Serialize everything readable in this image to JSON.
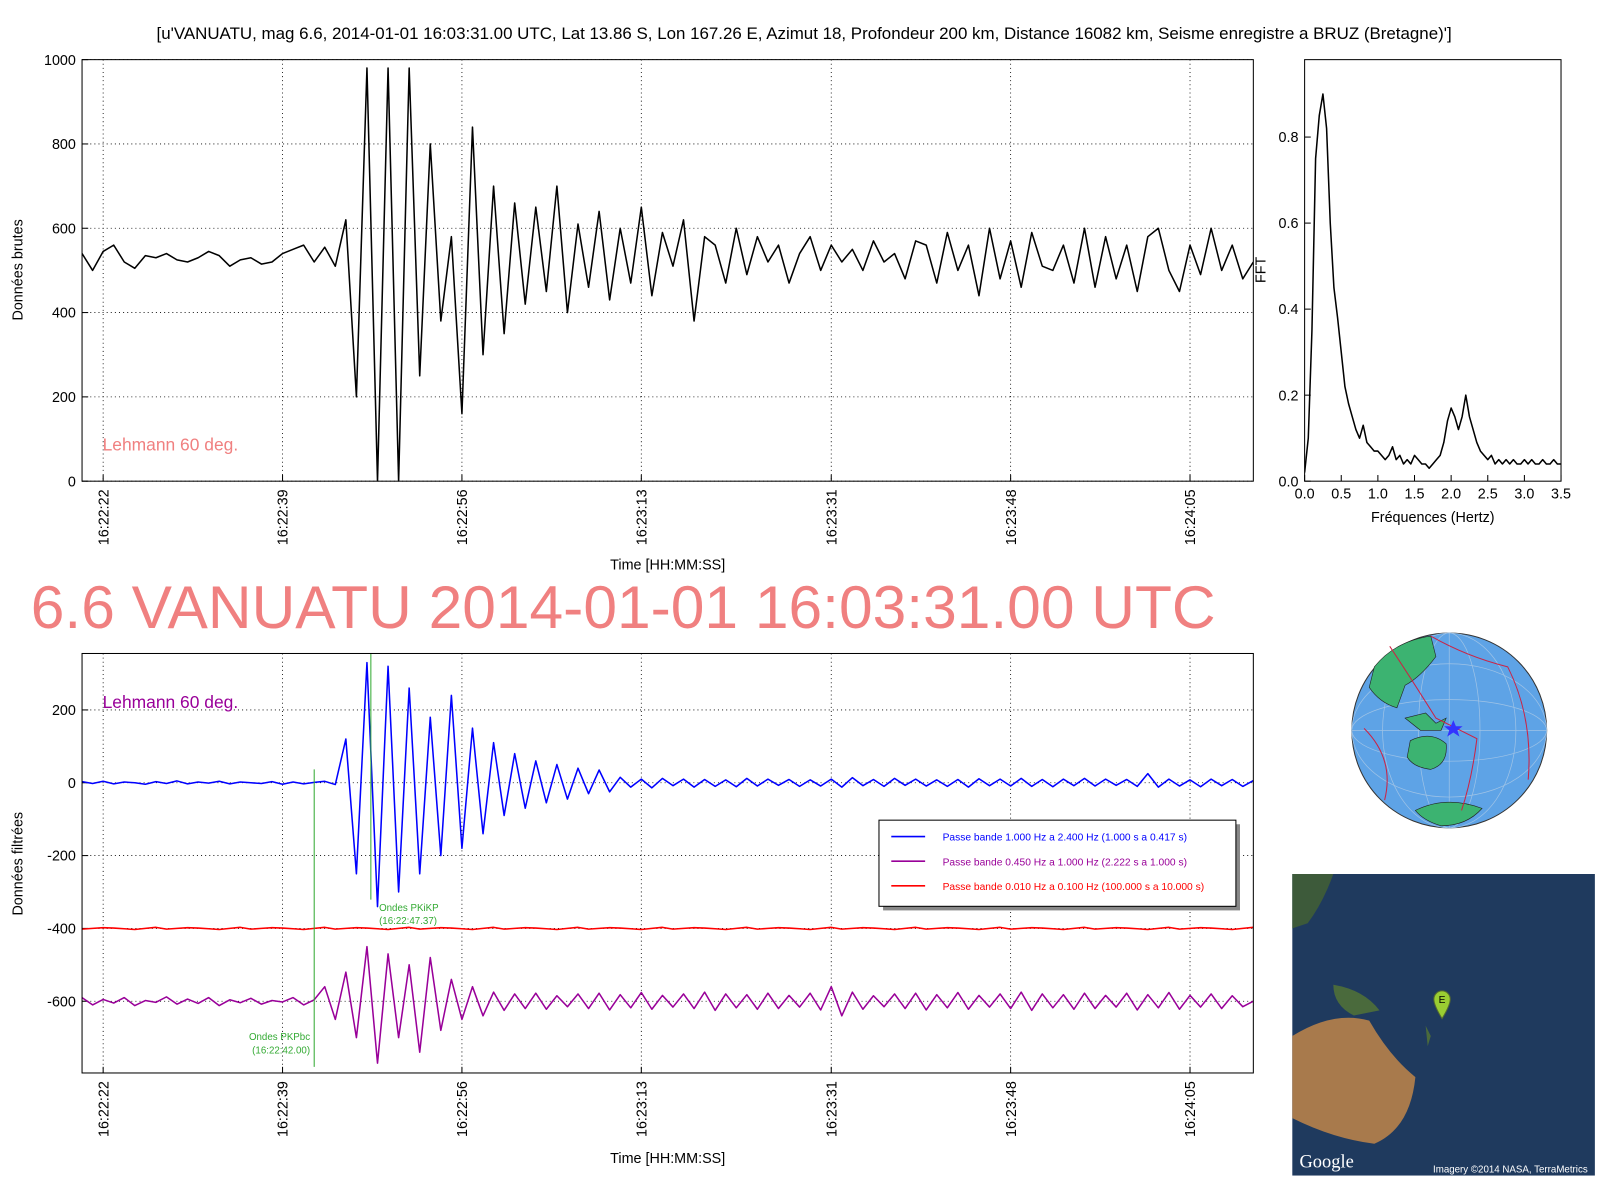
{
  "title": "[u'VANUATU, mag 6.6, 2014-01-01 16:03:31.00 UTC, Lat 13.86 S, Lon 167.26 E, Azimut 18, Profondeur 200 km, Distance 16082 km, Seisme enregistre a BRUZ (Bretagne)']",
  "headline": "6.6 VANUATU 2014-01-01 16:03:31.00 UTC",
  "map": {
    "logo": "Google",
    "attribution": "Imagery ©2014 NASA, TerraMetrics",
    "marker": "E"
  },
  "chart_data": [
    {
      "type": "line",
      "ylabel": "Données brutes",
      "xlabel": "Time [HH:MM:SS]",
      "annotation": "Lehmann 60 deg.",
      "annotation_color": "#f08080",
      "grid": true,
      "xlim": [
        "16:22:20",
        "16:24:11"
      ],
      "xticks": [
        "16:22:22",
        "16:22:39",
        "16:22:56",
        "16:23:13",
        "16:23:31",
        "16:23:48",
        "16:24:05"
      ],
      "ylim": [
        0,
        1000
      ],
      "yticks": [
        0,
        200,
        400,
        600,
        800,
        1000
      ],
      "x": [
        "16:22:20",
        "16:22:21",
        "16:22:22",
        "16:22:23",
        "16:22:24",
        "16:22:25",
        "16:22:26",
        "16:22:27",
        "16:22:28",
        "16:22:29",
        "16:22:30",
        "16:22:31",
        "16:22:32",
        "16:22:33",
        "16:22:34",
        "16:22:35",
        "16:22:36",
        "16:22:37",
        "16:22:38",
        "16:22:39",
        "16:22:40",
        "16:22:41",
        "16:22:42",
        "16:22:43",
        "16:22:44",
        "16:22:45",
        "16:22:46",
        "16:22:47",
        "16:22:48",
        "16:22:49",
        "16:22:50",
        "16:22:51",
        "16:22:52",
        "16:22:53",
        "16:22:54",
        "16:22:55",
        "16:22:56",
        "16:22:57",
        "16:22:58",
        "16:22:59",
        "16:23:00",
        "16:23:01",
        "16:23:02",
        "16:23:03",
        "16:23:04",
        "16:23:05",
        "16:23:06",
        "16:23:07",
        "16:23:08",
        "16:23:09",
        "16:23:10",
        "16:23:11",
        "16:23:12",
        "16:23:13",
        "16:23:14",
        "16:23:15",
        "16:23:16",
        "16:23:17",
        "16:23:18",
        "16:23:19",
        "16:23:20",
        "16:23:21",
        "16:23:22",
        "16:23:23",
        "16:23:24",
        "16:23:25",
        "16:23:26",
        "16:23:27",
        "16:23:28",
        "16:23:29",
        "16:23:30",
        "16:23:31",
        "16:23:32",
        "16:23:33",
        "16:23:34",
        "16:23:35",
        "16:23:36",
        "16:23:37",
        "16:23:38",
        "16:23:39",
        "16:23:40",
        "16:23:41",
        "16:23:42",
        "16:23:43",
        "16:23:44",
        "16:23:45",
        "16:23:46",
        "16:23:47",
        "16:23:48",
        "16:23:49",
        "16:23:50",
        "16:23:51",
        "16:23:52",
        "16:23:53",
        "16:23:54",
        "16:23:55",
        "16:23:56",
        "16:23:57",
        "16:23:58",
        "16:23:59",
        "16:24:00",
        "16:24:01",
        "16:24:02",
        "16:24:03",
        "16:24:04",
        "16:24:05",
        "16:24:06",
        "16:24:07",
        "16:24:08",
        "16:24:09",
        "16:24:10",
        "16:24:11"
      ],
      "series": [
        {
          "color": "#000000",
          "values": [
            540,
            500,
            545,
            560,
            520,
            505,
            535,
            530,
            540,
            525,
            520,
            530,
            545,
            535,
            510,
            525,
            530,
            515,
            520,
            540,
            550,
            560,
            520,
            555,
            510,
            620,
            200,
            980,
            0,
            980,
            0,
            980,
            250,
            800,
            380,
            580,
            160,
            840,
            300,
            700,
            350,
            660,
            420,
            650,
            450,
            700,
            400,
            610,
            460,
            640,
            430,
            600,
            470,
            650,
            440,
            590,
            510,
            620,
            380,
            580,
            560,
            470,
            600,
            490,
            580,
            520,
            560,
            470,
            540,
            580,
            500,
            560,
            520,
            550,
            500,
            570,
            520,
            540,
            480,
            570,
            560,
            470,
            590,
            500,
            560,
            440,
            600,
            480,
            570,
            460,
            590,
            510,
            500,
            560,
            470,
            600,
            460,
            580,
            480,
            560,
            450,
            580,
            600,
            500,
            450,
            560,
            490,
            600,
            500,
            560,
            480,
            520
          ]
        }
      ]
    },
    {
      "type": "line",
      "ylabel": "FFT",
      "xlabel": "Fréquences (Hertz)",
      "xlim": [
        0,
        3.5
      ],
      "xticks": [
        {
          "value": 0,
          "label": "0.0"
        },
        0.5,
        {
          "value": 1,
          "label": "1.0"
        },
        1.5,
        {
          "value": 2,
          "label": "2.0"
        },
        2.5,
        {
          "value": 3,
          "label": "3.0"
        },
        3.5
      ],
      "ylim": [
        0,
        0.98
      ],
      "yticks": [
        {
          "value": 0,
          "label": "0.0"
        },
        0.2,
        0.4,
        0.6,
        0.8
      ],
      "x": [
        0,
        0.05,
        0.1,
        0.15,
        0.2,
        0.25,
        0.3,
        0.35,
        0.4,
        0.45,
        0.5,
        0.55,
        0.6,
        0.65,
        0.7,
        0.75,
        0.8,
        0.85,
        0.9,
        0.95,
        1,
        1.05,
        1.1,
        1.15,
        1.2,
        1.25,
        1.3,
        1.35,
        1.4,
        1.45,
        1.5,
        1.55,
        1.6,
        1.65,
        1.7,
        1.75,
        1.8,
        1.85,
        1.9,
        1.95,
        2,
        2.05,
        2.1,
        2.15,
        2.2,
        2.25,
        2.3,
        2.35,
        2.4,
        2.45,
        2.5,
        2.55,
        2.6,
        2.65,
        2.7,
        2.75,
        2.8,
        2.85,
        2.9,
        2.95,
        3,
        3.05,
        3.1,
        3.15,
        3.2,
        3.25,
        3.3,
        3.35,
        3.4,
        3.45,
        3.5
      ],
      "series": [
        {
          "color": "#000000",
          "values": [
            0.02,
            0.1,
            0.35,
            0.75,
            0.85,
            0.9,
            0.82,
            0.6,
            0.45,
            0.38,
            0.3,
            0.22,
            0.18,
            0.15,
            0.12,
            0.1,
            0.13,
            0.09,
            0.08,
            0.07,
            0.07,
            0.06,
            0.05,
            0.06,
            0.08,
            0.05,
            0.06,
            0.04,
            0.05,
            0.04,
            0.06,
            0.05,
            0.04,
            0.04,
            0.03,
            0.04,
            0.05,
            0.06,
            0.09,
            0.14,
            0.17,
            0.15,
            0.12,
            0.15,
            0.2,
            0.15,
            0.12,
            0.09,
            0.07,
            0.06,
            0.05,
            0.06,
            0.04,
            0.05,
            0.04,
            0.05,
            0.04,
            0.05,
            0.04,
            0.04,
            0.05,
            0.04,
            0.05,
            0.04,
            0.04,
            0.05,
            0.04,
            0.04,
            0.05,
            0.04,
            0.04
          ]
        }
      ]
    },
    {
      "type": "line",
      "ylabel": "Données filtrées",
      "xlabel": "Time [HH:MM:SS]",
      "annotation": "Lehmann 60 deg.",
      "annotation_color": "#990099",
      "grid": true,
      "legend": "center right",
      "xlim": [
        "16:22:20",
        "16:24:11"
      ],
      "xticks": [
        "16:22:22",
        "16:22:39",
        "16:22:56",
        "16:23:13",
        "16:23:31",
        "16:23:48",
        "16:24:05"
      ],
      "ylim": [
        -797,
        355
      ],
      "yticks": [
        -600,
        -400,
        -200,
        0,
        200
      ],
      "markers": [
        {
          "x": "16:22:42.00",
          "label": "Ondes PKPbc",
          "sublabel": "(16:22:42.00)",
          "color": "#33aa33"
        },
        {
          "x": "16:22:47.37",
          "label": "Ondes PKiKP",
          "sublabel": "(16:22:47.37)",
          "color": "#33aa33"
        }
      ],
      "x": [
        "16:22:20",
        "16:22:21",
        "16:22:22",
        "16:22:23",
        "16:22:24",
        "16:22:25",
        "16:22:26",
        "16:22:27",
        "16:22:28",
        "16:22:29",
        "16:22:30",
        "16:22:31",
        "16:22:32",
        "16:22:33",
        "16:22:34",
        "16:22:35",
        "16:22:36",
        "16:22:37",
        "16:22:38",
        "16:22:39",
        "16:22:40",
        "16:22:41",
        "16:22:42",
        "16:22:43",
        "16:22:44",
        "16:22:45",
        "16:22:46",
        "16:22:47",
        "16:22:48",
        "16:22:49",
        "16:22:50",
        "16:22:51",
        "16:22:52",
        "16:22:53",
        "16:22:54",
        "16:22:55",
        "16:22:56",
        "16:22:57",
        "16:22:58",
        "16:22:59",
        "16:23:00",
        "16:23:01",
        "16:23:02",
        "16:23:03",
        "16:23:04",
        "16:23:05",
        "16:23:06",
        "16:23:07",
        "16:23:08",
        "16:23:09",
        "16:23:10",
        "16:23:11",
        "16:23:12",
        "16:23:13",
        "16:23:14",
        "16:23:15",
        "16:23:16",
        "16:23:17",
        "16:23:18",
        "16:23:19",
        "16:23:20",
        "16:23:21",
        "16:23:22",
        "16:23:23",
        "16:23:24",
        "16:23:25",
        "16:23:26",
        "16:23:27",
        "16:23:28",
        "16:23:29",
        "16:23:30",
        "16:23:31",
        "16:23:32",
        "16:23:33",
        "16:23:34",
        "16:23:35",
        "16:23:36",
        "16:23:37",
        "16:23:38",
        "16:23:39",
        "16:23:40",
        "16:23:41",
        "16:23:42",
        "16:23:43",
        "16:23:44",
        "16:23:45",
        "16:23:46",
        "16:23:47",
        "16:23:48",
        "16:23:49",
        "16:23:50",
        "16:23:51",
        "16:23:52",
        "16:23:53",
        "16:23:54",
        "16:23:55",
        "16:23:56",
        "16:23:57",
        "16:23:58",
        "16:23:59",
        "16:24:00",
        "16:24:01",
        "16:24:02",
        "16:24:03",
        "16:24:04",
        "16:24:05",
        "16:24:06",
        "16:24:07",
        "16:24:08",
        "16:24:09",
        "16:24:10",
        "16:24:11"
      ],
      "series": [
        {
          "name": "Passe bande 1.000 Hz a 2.400 Hz (1.000 s a 0.417 s)",
          "color": "#0000ff",
          "values": [
            3,
            -2,
            4,
            -3,
            2,
            0,
            -4,
            3,
            -2,
            5,
            -3,
            2,
            -1,
            4,
            -3,
            2,
            0,
            -2,
            3,
            -4,
            2,
            -3,
            1,
            4,
            -5,
            120,
            -250,
            330,
            -340,
            320,
            -300,
            260,
            -250,
            180,
            -200,
            240,
            -180,
            150,
            -140,
            110,
            -90,
            80,
            -70,
            60,
            -55,
            50,
            -45,
            40,
            -30,
            35,
            -25,
            15,
            -12,
            10,
            -14,
            12,
            -8,
            10,
            -12,
            9,
            -10,
            8,
            -11,
            12,
            -9,
            10,
            -7,
            9,
            -10,
            8,
            -9,
            10,
            -12,
            14,
            -8,
            9,
            -10,
            12,
            -7,
            10,
            -9,
            8,
            -10,
            9,
            -12,
            11,
            -8,
            10,
            -9,
            12,
            -10,
            9,
            -11,
            10,
            -8,
            12,
            -9,
            10,
            -7,
            9,
            -10,
            25,
            -12,
            10,
            -9,
            8,
            -11,
            10,
            -8,
            9,
            -10,
            6
          ]
        },
        {
          "name": "Passe bande 0.450 Hz a 1.000 Hz (2.222 s a 1.000 s)",
          "color": "#990099",
          "values": [
            -590,
            -610,
            -595,
            -605,
            -590,
            -612,
            -598,
            -603,
            -588,
            -608,
            -594,
            -606,
            -590,
            -612,
            -596,
            -604,
            -592,
            -608,
            -598,
            -602,
            -590,
            -610,
            -596,
            -560,
            -650,
            -520,
            -700,
            -450,
            -770,
            -470,
            -700,
            -500,
            -740,
            -480,
            -680,
            -540,
            -650,
            -560,
            -640,
            -575,
            -625,
            -580,
            -620,
            -578,
            -622,
            -585,
            -615,
            -580,
            -620,
            -578,
            -624,
            -582,
            -618,
            -576,
            -622,
            -584,
            -616,
            -580,
            -620,
            -575,
            -625,
            -580,
            -618,
            -582,
            -622,
            -578,
            -620,
            -584,
            -616,
            -578,
            -624,
            -560,
            -640,
            -575,
            -622,
            -585,
            -615,
            -580,
            -620,
            -578,
            -624,
            -582,
            -618,
            -576,
            -622,
            -584,
            -616,
            -580,
            -620,
            -575,
            -625,
            -580,
            -618,
            -582,
            -622,
            -578,
            -620,
            -584,
            -616,
            -578,
            -624,
            -582,
            -618,
            -576,
            -622,
            -584,
            -616,
            -580,
            -620,
            -585,
            -615,
            -600
          ]
        },
        {
          "name": "Passe bande 0.010 Hz a 0.100 Hz (100.000 s a 10.000 s)",
          "color": "#ff0000",
          "values": [
            -402,
            -400,
            -398,
            -399,
            -401,
            -403,
            -400,
            -397,
            -402,
            -400,
            -398,
            -399,
            -401,
            -403,
            -400,
            -397,
            -402,
            -400,
            -398,
            -399,
            -401,
            -403,
            -400,
            -397,
            -402,
            -400,
            -398,
            -399,
            -401,
            -403,
            -400,
            -397,
            -402,
            -400,
            -398,
            -399,
            -401,
            -403,
            -400,
            -397,
            -402,
            -400,
            -398,
            -399,
            -401,
            -403,
            -400,
            -397,
            -402,
            -400,
            -398,
            -399,
            -401,
            -403,
            -400,
            -397,
            -402,
            -400,
            -398,
            -399,
            -401,
            -403,
            -400,
            -397,
            -402,
            -400,
            -398,
            -399,
            -401,
            -403,
            -400,
            -397,
            -402,
            -400,
            -398,
            -399,
            -401,
            -403,
            -400,
            -397,
            -402,
            -400,
            -398,
            -399,
            -401,
            -403,
            -400,
            -397,
            -402,
            -400,
            -398,
            -399,
            -401,
            -403,
            -400,
            -397,
            -402,
            -400,
            -398,
            -399,
            -401,
            -403,
            -400,
            -397,
            -402,
            -400,
            -398,
            -399,
            -401,
            -403,
            -400,
            -397
          ]
        }
      ]
    }
  ]
}
